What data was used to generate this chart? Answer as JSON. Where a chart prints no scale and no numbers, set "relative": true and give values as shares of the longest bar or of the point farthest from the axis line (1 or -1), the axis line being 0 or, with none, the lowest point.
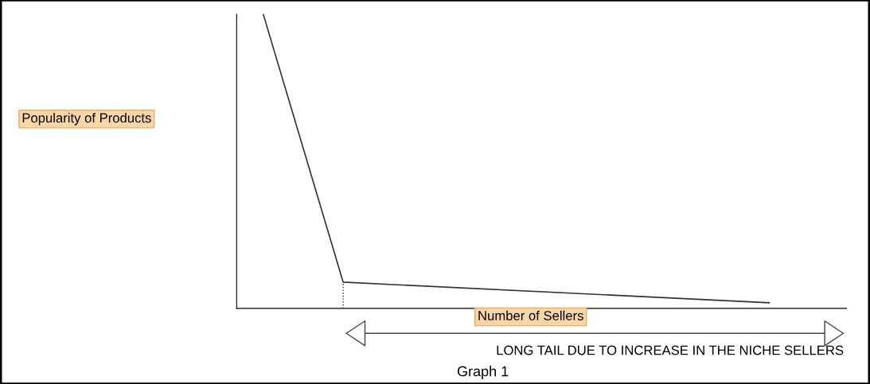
{
  "chart_data": {
    "type": "line",
    "relative": true,
    "title": "Graph 1",
    "xlabel": "Number of Sellers",
    "annotations": [
      "Popularity of Products",
      "LONG TAIL DUE TO INCREASE IN THE NICHE SELLERS"
    ],
    "categories": [
      null,
      null,
      null,
      null,
      null,
      null,
      null,
      null,
      null,
      null,
      null,
      null,
      null,
      null,
      null,
      null,
      null,
      null,
      null,
      null
    ],
    "series": [
      {
        "color": "#333333",
        "values": [
          1,
          null,
          null,
          0.089,
          null,
          null,
          null,
          null,
          null,
          null,
          null,
          null,
          null,
          null,
          null,
          null,
          null,
          null,
          null,
          0.019
        ]
      }
    ],
    "line_style": "solid"
  }
}
